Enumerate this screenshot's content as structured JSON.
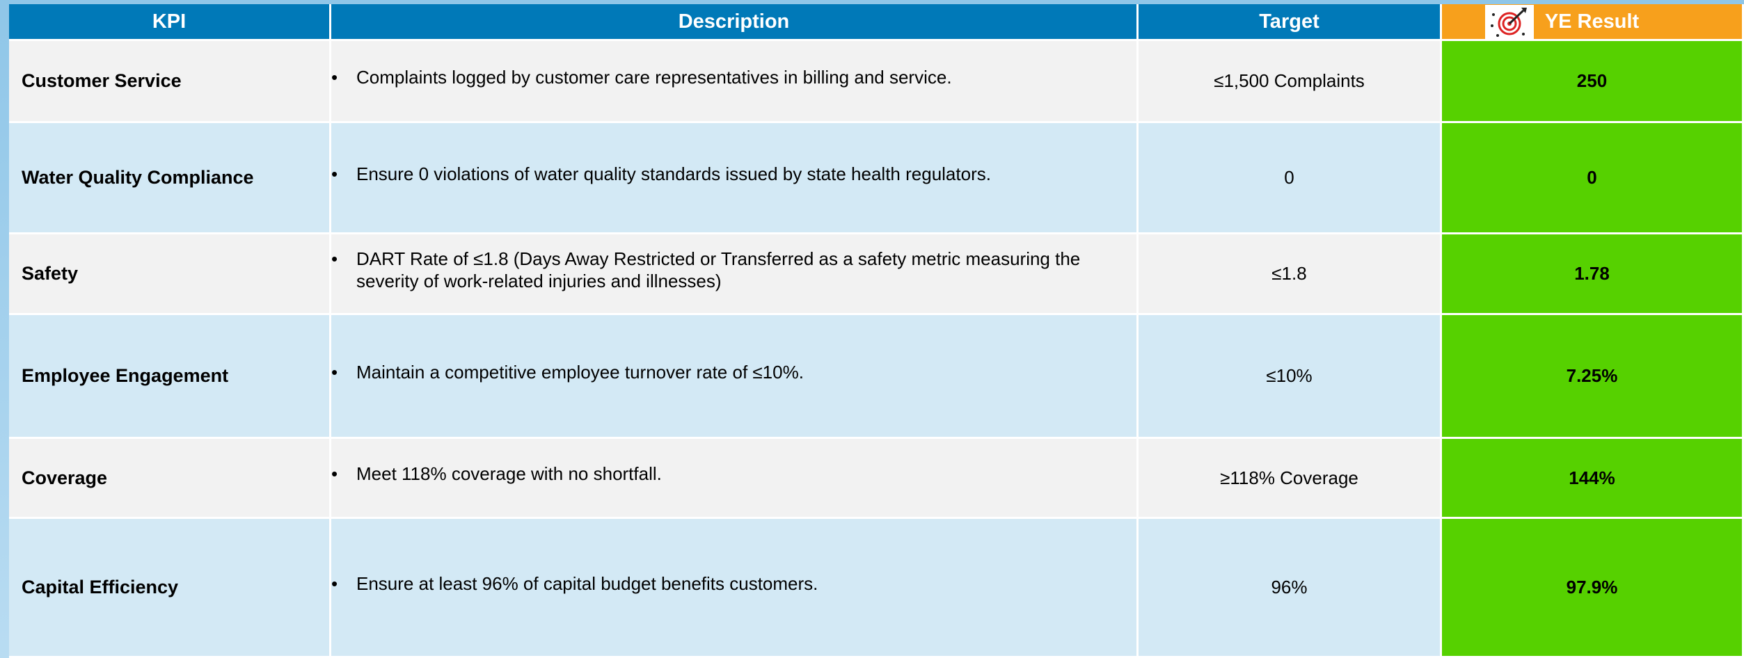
{
  "table": {
    "columns": [
      "KPI",
      "Description",
      "Target",
      "YE Result"
    ],
    "rows": [
      [
        "Customer Service",
        "Complaints logged by customer care representatives in billing and service.",
        "≤1,500 Complaints",
        "250"
      ],
      [
        "Water Quality Compliance",
        "Ensure 0 violations of water quality standards issued by state health regulators.",
        "0",
        "0"
      ],
      [
        "Safety",
        "DART Rate of ≤1.8 (Days Away Restricted or Transferred as a safety metric measuring the severity of work-related injuries and illnesses)",
        "≤1.8",
        "1.78"
      ],
      [
        "Employee Engagement",
        "Maintain a competitive employee turnover rate of ≤10%.",
        "≤10%",
        "7.25%"
      ],
      [
        "Coverage",
        "Meet 118% coverage with no shortfall.",
        "≥118% Coverage",
        "144%"
      ],
      [
        "Capital Efficiency",
        "Ensure at least 96% of capital budget benefits customers.",
        "96%",
        "97.9%"
      ]
    ]
  }
}
